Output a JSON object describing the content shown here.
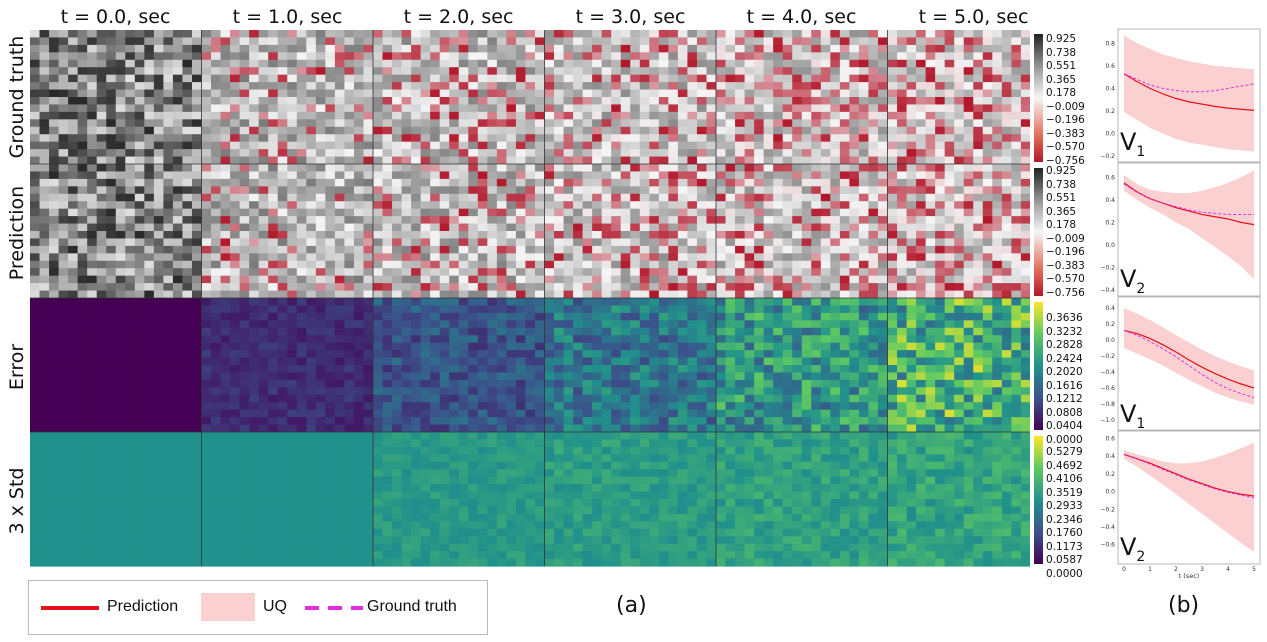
{
  "columns": [
    "t = 0.0, sec",
    "t = 1.0, sec",
    "t = 2.0, sec",
    "t = 3.0, sec",
    "t = 4.0, sec",
    "t = 5.0, sec"
  ],
  "rows": [
    "Ground truth",
    "Prediction",
    "Error",
    "3 x Std"
  ],
  "colorbars": {
    "field_ticks": [
      "0.925",
      "0.738",
      "0.551",
      "0.365",
      "0.178",
      "−0.009",
      "−0.196",
      "−0.383",
      "−0.570",
      "−0.756"
    ],
    "error_ticks": [
      "0.3636",
      "0.3232",
      "0.2828",
      "0.2424",
      "0.2020",
      "0.1616",
      "0.1212",
      "0.0808",
      "0.0404",
      "0.0000"
    ],
    "std_ticks": [
      "0.5279",
      "0.4692",
      "0.4106",
      "0.3519",
      "0.2933",
      "0.2346",
      "0.1760",
      "0.1173",
      "0.0587",
      "0.0000"
    ],
    "colors": {
      "viridis_low": "#440154",
      "viridis_mid": "#21918c",
      "viridis_high": "#fde725",
      "field_low": "#b2182b",
      "field_high": "#222222"
    }
  },
  "legend": {
    "prediction": "Prediction",
    "uq": "UQ",
    "ground_truth": "Ground truth",
    "colors": {
      "prediction": "#e8101a",
      "uq": "#fbd0d0",
      "ground_truth": "#e030e0"
    }
  },
  "panel_labels": {
    "a": "(a)",
    "b": "(b)"
  },
  "chart_data": [
    {
      "type": "heatmap",
      "rows": [
        "Ground truth",
        "Prediction",
        "Error",
        "3 x Std"
      ],
      "columns": [
        "t = 0.0, sec",
        "t = 1.0, sec",
        "t = 2.0, sec",
        "t = 3.0, sec",
        "t = 4.0, sec",
        "t = 5.0, sec"
      ],
      "field_range": [
        -0.756,
        0.925
      ],
      "error_range": [
        0.0,
        0.3636
      ],
      "std_range": [
        0.0,
        0.5279
      ]
    },
    {
      "type": "line",
      "xlabel": "t (sec)",
      "xlim": [
        0,
        5
      ],
      "x_ticks": [
        "0",
        "1",
        "2",
        "3",
        "4",
        "5"
      ],
      "x": [
        0,
        0.5,
        1,
        1.5,
        2,
        2.5,
        3,
        3.5,
        4,
        4.5,
        5
      ],
      "panels": [
        {
          "label_main": "V",
          "label_sub": "1",
          "ylim": [
            -0.2,
            0.9
          ],
          "y_ticks": [
            "0.8",
            "0.6",
            "0.4",
            "0.2",
            "0.0",
            "−0.2"
          ],
          "prediction": [
            0.53,
            0.46,
            0.4,
            0.35,
            0.31,
            0.28,
            0.26,
            0.24,
            0.225,
            0.215,
            0.205
          ],
          "uq_upper": [
            0.87,
            0.8,
            0.75,
            0.7,
            0.67,
            0.64,
            0.62,
            0.6,
            0.59,
            0.58,
            0.57
          ],
          "uq_lower": [
            0.19,
            0.12,
            0.05,
            0.0,
            -0.05,
            -0.08,
            -0.1,
            -0.12,
            -0.14,
            -0.15,
            -0.16
          ],
          "ground_truth": [
            0.53,
            0.48,
            0.43,
            0.4,
            0.38,
            0.37,
            0.37,
            0.38,
            0.4,
            0.42,
            0.44
          ]
        },
        {
          "label_main": "V",
          "label_sub": "2",
          "ylim": [
            -0.4,
            0.7
          ],
          "y_ticks": [
            "0.6",
            "0.4",
            "0.2",
            "0.0",
            "−0.2",
            "−0.4"
          ],
          "prediction": [
            0.55,
            0.47,
            0.41,
            0.37,
            0.33,
            0.3,
            0.27,
            0.25,
            0.23,
            0.2,
            0.18
          ],
          "uq_upper": [
            0.62,
            0.54,
            0.49,
            0.47,
            0.46,
            0.46,
            0.48,
            0.51,
            0.55,
            0.6,
            0.66
          ],
          "uq_lower": [
            0.48,
            0.4,
            0.33,
            0.27,
            0.2,
            0.14,
            0.06,
            -0.02,
            -0.1,
            -0.19,
            -0.3
          ],
          "ground_truth": [
            0.54,
            0.47,
            0.41,
            0.37,
            0.34,
            0.31,
            0.29,
            0.28,
            0.27,
            0.27,
            0.27
          ]
        },
        {
          "label_main": "V",
          "label_sub": "1",
          "ylim": [
            -1.05,
            0.5
          ],
          "y_ticks": [
            "0.4",
            "0.2",
            "0.0",
            "−0.2",
            "−0.4",
            "−0.6",
            "−0.8",
            "−1.0"
          ],
          "prediction": [
            0.12,
            0.08,
            0.02,
            -0.06,
            -0.15,
            -0.25,
            -0.34,
            -0.42,
            -0.49,
            -0.55,
            -0.6
          ],
          "uq_upper": [
            0.4,
            0.33,
            0.25,
            0.16,
            0.06,
            -0.03,
            -0.12,
            -0.2,
            -0.27,
            -0.33,
            -0.38
          ],
          "uq_lower": [
            -0.1,
            -0.17,
            -0.24,
            -0.32,
            -0.41,
            -0.5,
            -0.58,
            -0.66,
            -0.72,
            -0.77,
            -0.81
          ],
          "ground_truth": [
            0.12,
            0.06,
            -0.02,
            -0.11,
            -0.21,
            -0.32,
            -0.43,
            -0.53,
            -0.61,
            -0.67,
            -0.72
          ]
        },
        {
          "label_main": "V",
          "label_sub": "2",
          "ylim": [
            -0.75,
            0.65
          ],
          "y_ticks": [
            "0.6",
            "0.4",
            "0.2",
            "0.0",
            "−0.2",
            "−0.4",
            "−0.6"
          ],
          "prediction": [
            0.42,
            0.37,
            0.32,
            0.26,
            0.2,
            0.14,
            0.09,
            0.04,
            0.0,
            -0.03,
            -0.05
          ],
          "uq_upper": [
            0.47,
            0.42,
            0.38,
            0.34,
            0.32,
            0.32,
            0.34,
            0.38,
            0.43,
            0.49,
            0.55
          ],
          "uq_lower": [
            0.37,
            0.28,
            0.18,
            0.08,
            -0.03,
            -0.14,
            -0.25,
            -0.36,
            -0.47,
            -0.58,
            -0.68
          ],
          "ground_truth": [
            0.42,
            0.37,
            0.31,
            0.25,
            0.19,
            0.13,
            0.08,
            0.03,
            -0.01,
            -0.04,
            -0.07
          ]
        }
      ]
    }
  ]
}
